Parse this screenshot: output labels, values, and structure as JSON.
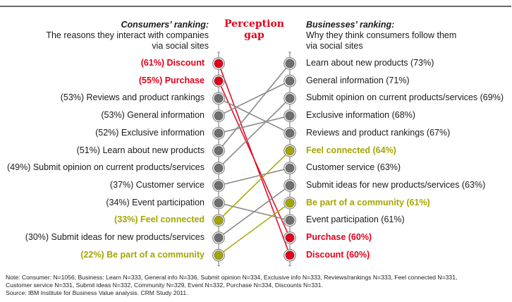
{
  "colors": {
    "highlight_red": "#e3001b",
    "highlight_olive": "#a4a600",
    "neutral_gray": "#6d6e71",
    "connector_gray": "#8a8a8a"
  },
  "header": {
    "left_title": "Consumers’ ranking:",
    "left_subtitle_1": "The reasons they interact with companies",
    "left_subtitle_2": "via social sites",
    "center_title_1": "Perception",
    "center_title_2": "gap",
    "right_title": "Businesses’ ranking:",
    "right_subtitle_1": "Why they think consumers follow them",
    "right_subtitle_2": "via social sites"
  },
  "consumers": [
    {
      "key": "discount",
      "label": "(61%) Discount",
      "pct": 61,
      "color": "red"
    },
    {
      "key": "purchase",
      "label": "(55%) Purchase",
      "pct": 55,
      "color": "red"
    },
    {
      "key": "reviews",
      "label": "(53%) Reviews and product rankings",
      "pct": 53,
      "color": "gray"
    },
    {
      "key": "general",
      "label": "(53%) General information",
      "pct": 53,
      "color": "gray"
    },
    {
      "key": "exclusive",
      "label": "(52%) Exclusive information",
      "pct": 52,
      "color": "gray"
    },
    {
      "key": "learn",
      "label": "(51%) Learn about new products",
      "pct": 51,
      "color": "gray"
    },
    {
      "key": "opinion",
      "label": "(49%) Submit opinion on current products/services",
      "pct": 49,
      "color": "gray"
    },
    {
      "key": "service",
      "label": "(37%) Customer service",
      "pct": 37,
      "color": "gray"
    },
    {
      "key": "event",
      "label": "(34%) Event participation",
      "pct": 34,
      "color": "gray"
    },
    {
      "key": "connected",
      "label": "(33%) Feel connected",
      "pct": 33,
      "color": "olive"
    },
    {
      "key": "ideas",
      "label": "(30%) Submit ideas for new products/services",
      "pct": 30,
      "color": "gray"
    },
    {
      "key": "community",
      "label": "(22%) Be part of a community",
      "pct": 22,
      "color": "olive"
    }
  ],
  "businesses": [
    {
      "key": "learn",
      "label": "Learn about new products (73%)",
      "pct": 73,
      "color": "gray"
    },
    {
      "key": "general",
      "label": "General information (71%)",
      "pct": 71,
      "color": "gray"
    },
    {
      "key": "opinion",
      "label": "Submit opinion on current products/services (69%)",
      "pct": 69,
      "color": "gray"
    },
    {
      "key": "exclusive",
      "label": "Exclusive information (68%)",
      "pct": 68,
      "color": "gray"
    },
    {
      "key": "reviews",
      "label": "Reviews and product rankings (67%)",
      "pct": 67,
      "color": "gray"
    },
    {
      "key": "connected",
      "label": "Feel connected (64%)",
      "pct": 64,
      "color": "olive"
    },
    {
      "key": "service",
      "label": "Customer service (63%)",
      "pct": 63,
      "color": "gray"
    },
    {
      "key": "ideas",
      "label": "Submit ideas for new products/services (63%)",
      "pct": 63,
      "color": "gray"
    },
    {
      "key": "community",
      "label": "Be part of a community (61%)",
      "pct": 61,
      "color": "olive"
    },
    {
      "key": "event",
      "label": "Event participation (61%)",
      "pct": 61,
      "color": "gray"
    },
    {
      "key": "purchase",
      "label": "Purchase (60%)",
      "pct": 60,
      "color": "red"
    },
    {
      "key": "discount",
      "label": "Discount (60%)",
      "pct": 60,
      "color": "red"
    }
  ],
  "note": {
    "line1": "Note: Consumer: N=1056; Business: Learn N=333, General info N=336, Submit opinion N=334, Exclusive info N=333, Reviews/rankings N=333, Feel connected N=331,",
    "line2": "Customer service N=331, Submit ideas N=332, Community N=329, Event N=332, Purchase N=334, Discounts N=331.",
    "line3": "Source: IBM Institute for Business Value analysis. CRM Study 2011."
  }
}
